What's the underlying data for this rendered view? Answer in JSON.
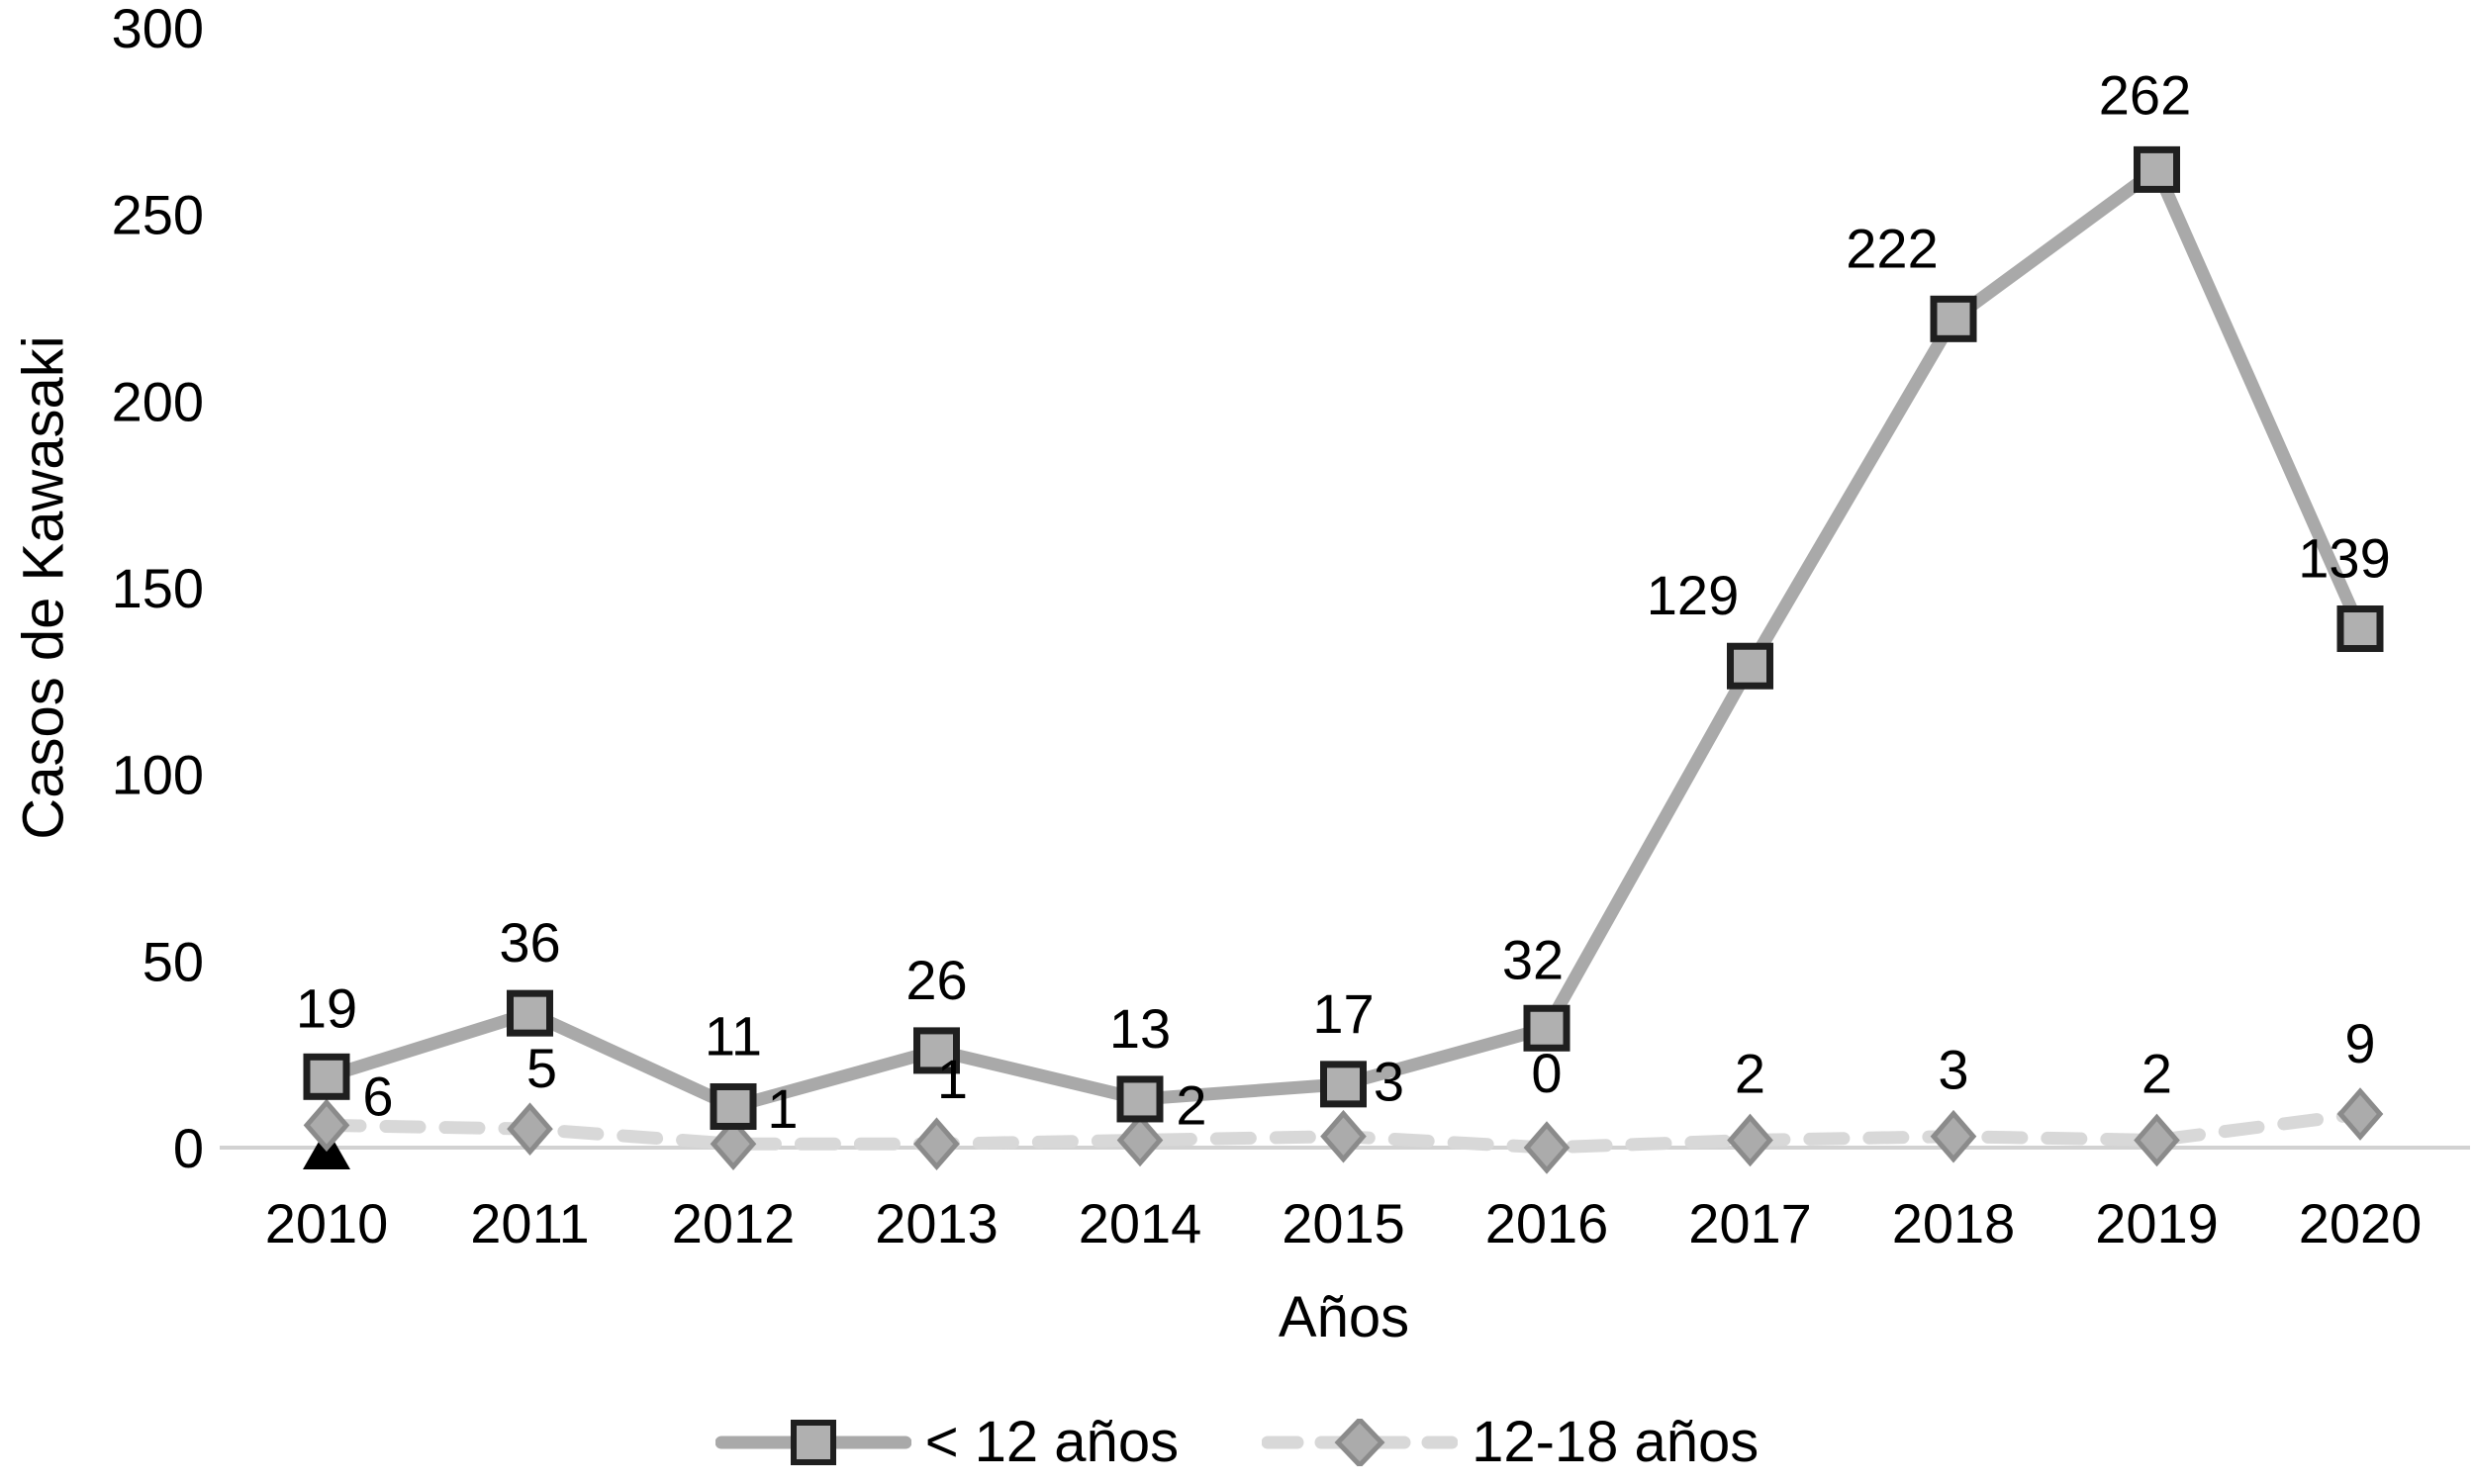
{
  "figure": {
    "background": "#ffffff",
    "xlabel": "Años",
    "ylabel": "Casos de Kawasaki"
  },
  "legend": {
    "items": [
      {
        "label": "< 12 años",
        "swatch": "solid-line-square-marker"
      },
      {
        "label": "12-18 años",
        "swatch": "dashed-line-diamond-marker"
      }
    ]
  },
  "chart_data": {
    "type": "line",
    "title": "",
    "xlabel": "Años",
    "ylabel": "Casos de Kawasaki",
    "categories": [
      "2010",
      "2011",
      "2012",
      "2013",
      "2014",
      "2015",
      "2016",
      "2017",
      "2018",
      "2019",
      "2020"
    ],
    "ylim": [
      0,
      300
    ],
    "yticks": [
      0,
      50,
      100,
      150,
      200,
      250,
      300
    ],
    "grid": false,
    "legend_position": "bottom",
    "axis_line_color": "#d2d2d2",
    "text_color": "#000000",
    "series": [
      {
        "name": "< 12 años",
        "values": [
          19,
          36,
          11,
          26,
          13,
          17,
          32,
          129,
          222,
          262,
          139
        ],
        "line_style": "solid",
        "line_color": "#a9a9a9",
        "marker": "square",
        "marker_fill": "#b0b0b0",
        "marker_stroke": "#1f1f1f",
        "label_offsets": [
          [
            0,
            -50
          ],
          [
            0,
            -52
          ],
          [
            0,
            -52
          ],
          [
            0,
            -52
          ],
          [
            0,
            -52
          ],
          [
            0,
            -52
          ],
          [
            -14,
            -50
          ],
          [
            -58,
            -52
          ],
          [
            -62,
            -52
          ],
          [
            -12,
            -56
          ],
          [
            -16,
            -52
          ]
        ]
      },
      {
        "name": "12-18 años",
        "values": [
          6,
          5,
          1,
          1,
          2,
          3,
          0,
          2,
          3,
          2,
          9
        ],
        "line_style": "dashed",
        "line_color": "#d8d8d8",
        "marker": "diamond",
        "marker_fill": "#ababab",
        "marker_stroke": "#8b8b8b",
        "label_offsets": [
          [
            52,
            -10
          ],
          [
            12,
            -42
          ],
          [
            50,
            -16
          ],
          [
            16,
            -46
          ],
          [
            52,
            -16
          ],
          [
            46,
            -36
          ],
          [
            0,
            -56
          ],
          [
            0,
            -48
          ],
          [
            0,
            -48
          ],
          [
            0,
            -48
          ],
          [
            0,
            -52
          ]
        ]
      }
    ],
    "annotations": [
      {
        "marker": "triangle-up",
        "category": "2010",
        "value": 0,
        "color": "#000000"
      }
    ]
  }
}
